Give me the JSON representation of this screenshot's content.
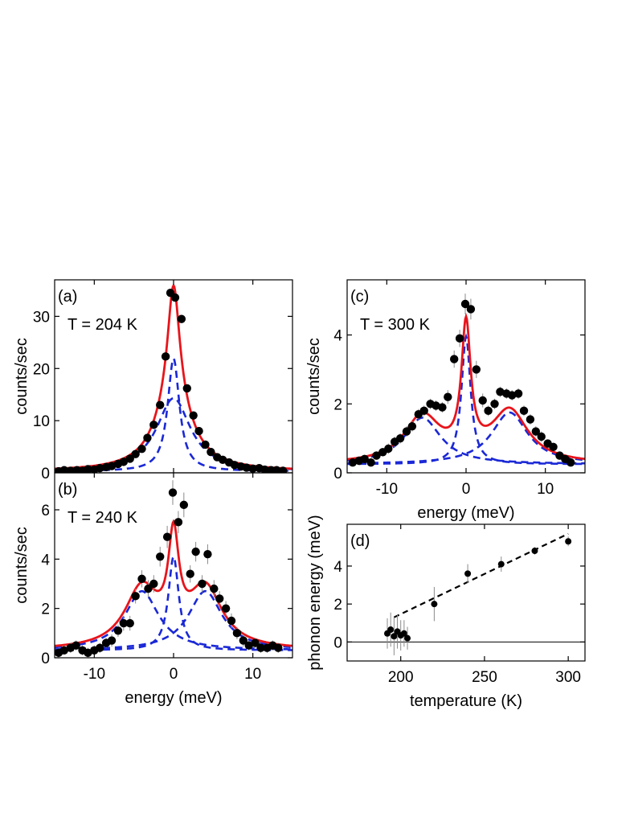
{
  "colors": {
    "fit": "#e8141b",
    "component": "#1a28d6",
    "data": "#000000",
    "trend": "#000000"
  },
  "chart_data": [
    {
      "id": "a",
      "type": "scatter",
      "panel_label": "(a)",
      "annotation": "T = 204 K",
      "xlabel": "",
      "ylabel": "counts/sec",
      "xlim": [
        -15,
        15
      ],
      "ylim": [
        0,
        37
      ],
      "xticks": [
        -10,
        0,
        10
      ],
      "yticks": [
        10,
        20,
        30
      ],
      "show_xtick_labels": false,
      "ytick_extra": "0",
      "fit": {
        "type": "double_lorentzian",
        "background": 0.3,
        "components": [
          {
            "center": 0,
            "height": 21.6,
            "hwhm": 0.9
          },
          {
            "center": 0,
            "height": 14.0,
            "hwhm": 2.6
          }
        ]
      },
      "points": [
        {
          "x": -14.5,
          "y": 0.3
        },
        {
          "x": -13.8,
          "y": 0.5
        },
        {
          "x": -13.0,
          "y": 0.4
        },
        {
          "x": -12.2,
          "y": 0.5
        },
        {
          "x": -11.5,
          "y": 0.4
        },
        {
          "x": -10.8,
          "y": 0.7
        },
        {
          "x": -10.0,
          "y": 0.6
        },
        {
          "x": -9.3,
          "y": 0.9
        },
        {
          "x": -8.5,
          "y": 1.1
        },
        {
          "x": -7.8,
          "y": 1.3
        },
        {
          "x": -7.0,
          "y": 1.7
        },
        {
          "x": -6.3,
          "y": 2.1
        },
        {
          "x": -5.5,
          "y": 2.7
        },
        {
          "x": -4.8,
          "y": 3.6
        },
        {
          "x": -4.0,
          "y": 4.6
        },
        {
          "x": -3.3,
          "y": 6.7
        },
        {
          "x": -2.5,
          "y": 9.2
        },
        {
          "x": -1.7,
          "y": 13.0
        },
        {
          "x": -1.0,
          "y": 22.3
        },
        {
          "x": -0.4,
          "y": 34.5
        },
        {
          "x": 0.2,
          "y": 33.6
        },
        {
          "x": 1.0,
          "y": 29.5
        },
        {
          "x": 1.7,
          "y": 16.2
        },
        {
          "x": 2.5,
          "y": 11.0
        },
        {
          "x": 3.2,
          "y": 8.0
        },
        {
          "x": 4.0,
          "y": 5.4
        },
        {
          "x": 4.7,
          "y": 4.0
        },
        {
          "x": 5.5,
          "y": 3.0
        },
        {
          "x": 6.2,
          "y": 2.5
        },
        {
          "x": 7.0,
          "y": 2.0
        },
        {
          "x": 7.7,
          "y": 1.5
        },
        {
          "x": 8.5,
          "y": 1.2
        },
        {
          "x": 9.2,
          "y": 1.0
        },
        {
          "x": 10.0,
          "y": 0.8
        },
        {
          "x": 10.8,
          "y": 0.9
        },
        {
          "x": 11.5,
          "y": 0.6
        },
        {
          "x": 12.3,
          "y": 0.5
        },
        {
          "x": 13.0,
          "y": 0.5
        },
        {
          "x": 13.8,
          "y": 0.4
        }
      ]
    },
    {
      "id": "b",
      "type": "scatter",
      "panel_label": "(b)",
      "annotation": "T = 240 K",
      "xlabel": "energy (meV)",
      "ylabel": "counts/sec",
      "xlim": [
        -15,
        15
      ],
      "ylim": [
        0,
        7.5
      ],
      "xticks": [
        -10,
        0,
        10
      ],
      "yticks": [
        0,
        2,
        4,
        6
      ],
      "show_xtick_labels": true,
      "fit": {
        "type": "lorentzian_sum",
        "background": 0.3,
        "components": [
          {
            "center": 0,
            "height": 3.8,
            "hwhm": 0.8
          },
          {
            "center": -4.0,
            "height": 2.4,
            "hwhm": 2.6
          },
          {
            "center": 4.0,
            "height": 2.4,
            "hwhm": 2.6
          }
        ]
      },
      "points": [
        {
          "x": -14.5,
          "y": 0.2,
          "err": 0.15
        },
        {
          "x": -13.8,
          "y": 0.3,
          "err": 0.15
        },
        {
          "x": -13.0,
          "y": 0.4,
          "err": 0.2
        },
        {
          "x": -12.3,
          "y": 0.5,
          "err": 0.2
        },
        {
          "x": -11.5,
          "y": 0.3,
          "err": 0.2
        },
        {
          "x": -10.8,
          "y": 0.2,
          "err": 0.2
        },
        {
          "x": -10.0,
          "y": 0.3,
          "err": 0.2
        },
        {
          "x": -9.3,
          "y": 0.4,
          "err": 0.2
        },
        {
          "x": -8.5,
          "y": 0.6,
          "err": 0.2
        },
        {
          "x": -7.8,
          "y": 0.7,
          "err": 0.25
        },
        {
          "x": -7.0,
          "y": 1.1,
          "err": 0.25
        },
        {
          "x": -6.3,
          "y": 1.4,
          "err": 0.3
        },
        {
          "x": -5.5,
          "y": 1.4,
          "err": 0.3
        },
        {
          "x": -4.8,
          "y": 2.5,
          "err": 0.3
        },
        {
          "x": -4.0,
          "y": 3.2,
          "err": 0.35
        },
        {
          "x": -3.2,
          "y": 2.8,
          "err": 0.35
        },
        {
          "x": -2.5,
          "y": 3.0,
          "err": 0.35
        },
        {
          "x": -1.7,
          "y": 4.1,
          "err": 0.4
        },
        {
          "x": -0.8,
          "y": 4.9,
          "err": 0.45
        },
        {
          "x": -0.1,
          "y": 6.7,
          "err": 0.5
        },
        {
          "x": 0.6,
          "y": 5.5,
          "err": 0.45
        },
        {
          "x": 1.3,
          "y": 6.2,
          "err": 0.5
        },
        {
          "x": 2.1,
          "y": 3.4,
          "err": 0.35
        },
        {
          "x": 2.8,
          "y": 4.3,
          "err": 0.4
        },
        {
          "x": 3.6,
          "y": 3.0,
          "err": 0.35
        },
        {
          "x": 4.3,
          "y": 4.2,
          "err": 0.4
        },
        {
          "x": 5.1,
          "y": 2.8,
          "err": 0.35
        },
        {
          "x": 5.8,
          "y": 2.4,
          "err": 0.3
        },
        {
          "x": 6.6,
          "y": 2.0,
          "err": 0.3
        },
        {
          "x": 7.3,
          "y": 1.5,
          "err": 0.3
        },
        {
          "x": 8.0,
          "y": 1.0,
          "err": 0.25
        },
        {
          "x": 8.8,
          "y": 0.7,
          "err": 0.25
        },
        {
          "x": 9.5,
          "y": 0.5,
          "err": 0.2
        },
        {
          "x": 10.3,
          "y": 0.6,
          "err": 0.2
        },
        {
          "x": 11.0,
          "y": 0.4,
          "err": 0.2
        },
        {
          "x": 11.8,
          "y": 0.4,
          "err": 0.2
        },
        {
          "x": 12.5,
          "y": 0.5,
          "err": 0.2
        },
        {
          "x": 13.2,
          "y": 0.4,
          "err": 0.2
        }
      ]
    },
    {
      "id": "c",
      "type": "scatter",
      "panel_label": "(c)",
      "annotation": "T = 300 K",
      "xlabel": "energy (meV)",
      "ylabel": "counts/sec",
      "xlim": [
        -15,
        15
      ],
      "ylim": [
        0,
        5.6
      ],
      "xticks": [
        -10,
        0,
        10
      ],
      "yticks": [
        0,
        2,
        4
      ],
      "show_xtick_labels": true,
      "fit": {
        "type": "lorentzian_sum",
        "background": 0.25,
        "components": [
          {
            "center": 0,
            "height": 3.7,
            "hwhm": 0.7
          },
          {
            "center": -5.5,
            "height": 1.35,
            "hwhm": 2.8
          },
          {
            "center": 5.5,
            "height": 1.5,
            "hwhm": 2.8
          }
        ]
      },
      "points": [
        {
          "x": -14.3,
          "y": 0.3,
          "err": 0.1
        },
        {
          "x": -13.5,
          "y": 0.35,
          "err": 0.1
        },
        {
          "x": -12.8,
          "y": 0.4,
          "err": 0.12
        },
        {
          "x": -12.0,
          "y": 0.3,
          "err": 0.12
        },
        {
          "x": -11.3,
          "y": 0.5,
          "err": 0.12
        },
        {
          "x": -10.5,
          "y": 0.6,
          "err": 0.12
        },
        {
          "x": -9.8,
          "y": 0.7,
          "err": 0.15
        },
        {
          "x": -9.0,
          "y": 0.9,
          "err": 0.15
        },
        {
          "x": -8.3,
          "y": 1.0,
          "err": 0.15
        },
        {
          "x": -7.5,
          "y": 1.2,
          "err": 0.15
        },
        {
          "x": -6.8,
          "y": 1.35,
          "err": 0.15
        },
        {
          "x": -6.0,
          "y": 1.7,
          "err": 0.15
        },
        {
          "x": -5.3,
          "y": 1.8,
          "err": 0.15
        },
        {
          "x": -4.5,
          "y": 2.0,
          "err": 0.15
        },
        {
          "x": -3.8,
          "y": 1.95,
          "err": 0.15
        },
        {
          "x": -3.0,
          "y": 1.9,
          "err": 0.15
        },
        {
          "x": -2.3,
          "y": 2.2,
          "err": 0.2
        },
        {
          "x": -1.5,
          "y": 3.3,
          "err": 0.25
        },
        {
          "x": -0.8,
          "y": 3.9,
          "err": 0.25
        },
        {
          "x": -0.1,
          "y": 4.9,
          "err": 0.3
        },
        {
          "x": 0.6,
          "y": 4.75,
          "err": 0.3
        },
        {
          "x": 1.3,
          "y": 3.0,
          "err": 0.25
        },
        {
          "x": 2.1,
          "y": 2.1,
          "err": 0.2
        },
        {
          "x": 2.8,
          "y": 1.8,
          "err": 0.15
        },
        {
          "x": 3.6,
          "y": 2.0,
          "err": 0.15
        },
        {
          "x": 4.3,
          "y": 2.35,
          "err": 0.15
        },
        {
          "x": 5.1,
          "y": 2.3,
          "err": 0.15
        },
        {
          "x": 5.8,
          "y": 2.25,
          "err": 0.15
        },
        {
          "x": 6.6,
          "y": 2.3,
          "err": 0.15
        },
        {
          "x": 7.3,
          "y": 1.8,
          "err": 0.15
        },
        {
          "x": 8.1,
          "y": 1.55,
          "err": 0.15
        },
        {
          "x": 8.8,
          "y": 1.2,
          "err": 0.15
        },
        {
          "x": 9.5,
          "y": 1.05,
          "err": 0.15
        },
        {
          "x": 10.3,
          "y": 0.85,
          "err": 0.12
        },
        {
          "x": 11.0,
          "y": 0.75,
          "err": 0.12
        },
        {
          "x": 11.8,
          "y": 0.5,
          "err": 0.12
        },
        {
          "x": 12.5,
          "y": 0.4,
          "err": 0.12
        },
        {
          "x": 13.2,
          "y": 0.3,
          "err": 0.1
        }
      ]
    },
    {
      "id": "d",
      "type": "scatter",
      "panel_label": "(d)",
      "annotation": "",
      "xlabel": "temperature (K)",
      "ylabel": "phonon energy (meV)",
      "xlim": [
        168,
        310
      ],
      "ylim": [
        -1.0,
        6.2
      ],
      "xticks": [
        200,
        250,
        300
      ],
      "yticks": [
        0,
        2,
        4
      ],
      "show_xtick_labels": true,
      "zero_line": 0,
      "trend": {
        "x": [
          196,
          300
        ],
        "y": [
          1.3,
          5.7
        ]
      },
      "points": [
        {
          "x": 192,
          "y": 0.45,
          "err": 0.8
        },
        {
          "x": 194,
          "y": 0.65,
          "err": 0.9
        },
        {
          "x": 196,
          "y": 0.3,
          "err": 1.0
        },
        {
          "x": 198,
          "y": 0.55,
          "err": 0.9
        },
        {
          "x": 200,
          "y": 0.35,
          "err": 0.8
        },
        {
          "x": 202,
          "y": 0.45,
          "err": 0.7
        },
        {
          "x": 204,
          "y": 0.2,
          "err": 0.6
        },
        {
          "x": 220,
          "y": 2.0,
          "err": 0.9
        },
        {
          "x": 240,
          "y": 3.6,
          "err": 0.5
        },
        {
          "x": 260,
          "y": 4.1,
          "err": 0.4
        },
        {
          "x": 280,
          "y": 4.8,
          "err": 0.2
        },
        {
          "x": 300,
          "y": 5.3,
          "err": 0.25
        }
      ]
    }
  ]
}
